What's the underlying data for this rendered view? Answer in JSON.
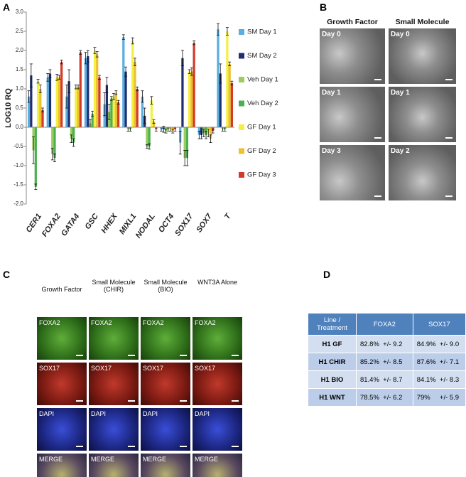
{
  "panel_labels": [
    "A",
    "B",
    "C",
    "D"
  ],
  "chart_data": {
    "type": "bar",
    "ylabel": "LOG10 RQ",
    "categories": [
      "CER1",
      "FOXA2",
      "GATA4",
      "GSC",
      "HHEX",
      "MIXL1",
      "NODAL",
      "OCT4",
      "SOX17",
      "SOX7",
      "T"
    ],
    "series": [
      {
        "name": "SM Day 1",
        "color": "#5aaee0",
        "values": [
          0.8,
          1.3,
          0.8,
          1.8,
          0.6,
          2.35,
          0.8,
          -0.05,
          -0.4,
          -0.2,
          2.55
        ],
        "errors": [
          0.15,
          0.1,
          0.3,
          0.15,
          0.3,
          0.06,
          0.15,
          0.05,
          0.3,
          0.1,
          0.15
        ]
      },
      {
        "name": "SM Day 2",
        "color": "#1f2f6e",
        "values": [
          1.35,
          1.4,
          1.2,
          1.85,
          1.1,
          1.45,
          0.3,
          -0.05,
          1.8,
          -0.2,
          1.4
        ],
        "errors": [
          0.3,
          0.1,
          0.3,
          0.15,
          0.2,
          0.12,
          0.2,
          0.08,
          0.2,
          0.1,
          0.25
        ]
      },
      {
        "name": "Veh Day 1",
        "color": "#9ccc5c",
        "values": [
          -0.6,
          -0.7,
          -0.3,
          0.1,
          0.4,
          -0.05,
          -0.5,
          -0.1,
          -0.8,
          -0.15,
          -0.05
        ],
        "errors": [
          0.35,
          0.15,
          0.1,
          0.1,
          0.2,
          0.05,
          0.05,
          0.05,
          0.2,
          0.1,
          0.05
        ]
      },
      {
        "name": "Veh Day 2",
        "color": "#4caf50",
        "values": [
          -1.55,
          -0.8,
          -0.4,
          0.35,
          0.75,
          -0.05,
          -0.5,
          -0.05,
          -0.8,
          -0.2,
          -0.05
        ],
        "errors": [
          0.07,
          0.1,
          0.1,
          0.07,
          0.05,
          0.05,
          0.07,
          0.05,
          0.2,
          0.1,
          0.05
        ]
      },
      {
        "name": "GF Day 1",
        "color": "#f4f040",
        "values": [
          1.2,
          1.3,
          1.05,
          2.0,
          0.8,
          2.25,
          0.7,
          -0.05,
          1.45,
          -0.15,
          2.5
        ],
        "errors": [
          0.05,
          0.08,
          0.05,
          0.08,
          0.08,
          0.08,
          0.1,
          0.05,
          0.05,
          0.1,
          0.1
        ]
      },
      {
        "name": "GF Day 2",
        "color": "#ecc02e",
        "values": [
          1.0,
          1.3,
          1.05,
          1.9,
          0.9,
          1.7,
          0.15,
          -0.1,
          1.45,
          -0.3,
          1.65
        ],
        "errors": [
          0.1,
          0.05,
          0.05,
          0.07,
          0.05,
          0.1,
          0.05,
          0.05,
          0.1,
          0.1,
          0.05
        ]
      },
      {
        "name": "GF Day 3",
        "color": "#d33a2a",
        "values": [
          0.45,
          1.7,
          1.95,
          1.3,
          0.65,
          1.0,
          -0.05,
          -0.05,
          2.2,
          -0.1,
          1.15
        ],
        "errors": [
          0.05,
          0.05,
          0.05,
          0.05,
          0.05,
          0.05,
          0.05,
          0.05,
          0.05,
          0.05,
          0.05
        ]
      }
    ],
    "ylim": [
      -2,
      3
    ],
    "yticks": [
      {
        "value": 3,
        "label": "3.0"
      },
      2.5,
      {
        "value": 2,
        "label": "2.0"
      },
      1.5,
      {
        "value": 1,
        "label": "1.0"
      },
      0.5,
      {
        "value": 0,
        "label": "0.0"
      },
      -0.5,
      {
        "value": -1,
        "label": "-1.0"
      },
      -1.5,
      {
        "value": -2,
        "label": "-2.0"
      }
    ],
    "legend": "right"
  },
  "panel_b": {
    "columns": [
      "Growth Factor",
      "Small Molecule"
    ],
    "rows": [
      [
        "Day 0",
        "Day 0"
      ],
      [
        "Day 1",
        "Day 1"
      ],
      [
        "Day 3",
        "Day 2"
      ]
    ]
  },
  "panel_c": {
    "columns": [
      "Growth Factor",
      "Small Molecule (CHIR)",
      "Small Molecule (BIO)",
      "WNT3A Alone"
    ],
    "rows": [
      [
        "FOXA2",
        "FOXA2",
        "FOXA2",
        "FOXA2"
      ],
      [
        "SOX17",
        "SOX17",
        "SOX17",
        "SOX17"
      ],
      [
        "DAPI",
        "DAPI",
        "DAPI",
        "DAPI"
      ],
      [
        "MERGE",
        "MERGE",
        "MERGE",
        "MERGE"
      ]
    ]
  },
  "panel_d": {
    "header": [
      "Line / Treatment",
      "FOXA2",
      "SOX17"
    ],
    "rows": [
      [
        "H1 GF",
        "82.8%  +/- 9.2",
        "84.9%  +/- 9.0"
      ],
      [
        "H1 CHIR",
        "85.2%  +/- 8.5",
        "87.6%  +/- 7.1"
      ],
      [
        "H1 BIO",
        "81.4%  +/- 8.7",
        "84.1%  +/- 8.3"
      ],
      [
        "H1 WNT",
        "78.5%  +/- 6.2",
        "79%     +/- 5.9"
      ]
    ]
  }
}
